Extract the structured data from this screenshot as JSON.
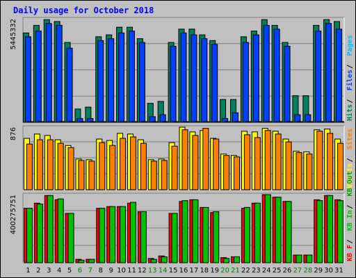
{
  "title": "Daily usage for October 2018",
  "colors": {
    "background": "#c0c0c0",
    "panel": "#c0c0c0",
    "title": "#0000ff",
    "hits": "#00805c",
    "files": "#0040ff",
    "pages": "#00c0ff",
    "visits": "#ffff00",
    "sites": "#ff8000",
    "kbin": "#00c000",
    "kbout": "#00a000",
    "kbf": "#ff0000",
    "weekday": "#000000",
    "weekend": "#008000"
  },
  "chart_data": [
    {
      "type": "bar",
      "name": "hits-files-pages",
      "max_label": "5445332",
      "legend": [
        {
          "label": "Hits",
          "color": "#00805c"
        },
        {
          "label": "Files",
          "color": "#0040ff"
        },
        {
          "label": "Pages",
          "color": "#00c0ff"
        }
      ],
      "categories": [
        "1",
        "2",
        "3",
        "4",
        "5",
        "6",
        "7",
        "8",
        "9",
        "10",
        "11",
        "12",
        "13",
        "14",
        "15",
        "16",
        "17",
        "18",
        "19",
        "20",
        "21",
        "22",
        "23",
        "24",
        "25",
        "26",
        "27",
        "28",
        "29",
        "30",
        "31"
      ],
      "series": [
        {
          "name": "Hits",
          "values": [
            4700000,
            5100000,
            5400000,
            5300000,
            4200000,
            700000,
            800000,
            4500000,
            4600000,
            5000000,
            5000000,
            4400000,
            1000000,
            1100000,
            4200000,
            4900000,
            4900000,
            4600000,
            4300000,
            1200000,
            1200000,
            4500000,
            4800000,
            5400000,
            5100000,
            4200000,
            1400000,
            1400000,
            5100000,
            5400000,
            5300000
          ],
          "color": "#00805c"
        },
        {
          "name": "Files",
          "values": [
            4500000,
            4800000,
            5200000,
            5100000,
            3900000,
            200000,
            200000,
            4300000,
            4400000,
            4700000,
            4800000,
            4200000,
            300000,
            400000,
            4000000,
            4700000,
            4600000,
            4400000,
            4100000,
            200000,
            500000,
            4200000,
            4600000,
            5100000,
            4900000,
            4000000,
            400000,
            400000,
            4800000,
            5200000,
            4900000
          ],
          "color": "#0040ff"
        },
        {
          "name": "Pages",
          "values": [
            30000,
            40000,
            40000,
            40000,
            30000,
            20000,
            20000,
            30000,
            30000,
            40000,
            40000,
            30000,
            20000,
            20000,
            30000,
            40000,
            40000,
            30000,
            30000,
            20000,
            20000,
            30000,
            40000,
            40000,
            40000,
            30000,
            20000,
            20000,
            40000,
            40000,
            40000
          ],
          "color": "#00c0ff"
        }
      ],
      "ylim": [
        0,
        5445332
      ]
    },
    {
      "type": "bar",
      "name": "visits-sites",
      "max_label": "876",
      "legend": [
        {
          "label": "Visits",
          "color": "#ffff00"
        },
        {
          "label": "Sites",
          "color": "#ff8000"
        }
      ],
      "categories": [
        "1",
        "2",
        "3",
        "4",
        "5",
        "6",
        "7",
        "8",
        "9",
        "10",
        "11",
        "12",
        "13",
        "14",
        "15",
        "16",
        "17",
        "18",
        "19",
        "20",
        "21",
        "22",
        "23",
        "24",
        "25",
        "26",
        "27",
        "28",
        "29",
        "30",
        "31"
      ],
      "series": [
        {
          "name": "Visits",
          "values": [
            720,
            780,
            760,
            700,
            620,
            430,
            420,
            710,
            690,
            790,
            780,
            700,
            420,
            430,
            660,
            876,
            810,
            830,
            720,
            500,
            480,
            820,
            810,
            860,
            820,
            710,
            540,
            530,
            840,
            850,
            710
          ],
          "color": "#ffff00"
        },
        {
          "name": "Sites",
          "values": [
            640,
            700,
            700,
            650,
            590,
            410,
            400,
            660,
            620,
            720,
            740,
            650,
            400,
            410,
            610,
            840,
            760,
            860,
            710,
            480,
            460,
            770,
            730,
            830,
            780,
            670,
            520,
            500,
            820,
            790,
            650
          ],
          "color": "#ff8000"
        }
      ],
      "ylim": [
        0,
        876
      ]
    },
    {
      "type": "bar",
      "name": "kb-in-out",
      "max_label": "400275751",
      "legend": [
        {
          "label": "KB F",
          "color": "#ff0000"
        },
        {
          "label": "KB In",
          "color": "#00c000"
        },
        {
          "label": "KB Out",
          "color": "#00a000"
        }
      ],
      "categories": [
        "1",
        "2",
        "3",
        "4",
        "5",
        "6",
        "7",
        "8",
        "9",
        "10",
        "11",
        "12",
        "13",
        "14",
        "15",
        "16",
        "17",
        "18",
        "19",
        "20",
        "21",
        "22",
        "23",
        "24",
        "25",
        "26",
        "27",
        "28",
        "29",
        "30",
        "31"
      ],
      "series": [
        {
          "name": "KB F",
          "values": [
            320000000,
            350000000,
            395000000,
            370000000,
            290000000,
            20000000,
            20000000,
            320000000,
            330000000,
            330000000,
            350000000,
            300000000,
            25000000,
            40000000,
            290000000,
            360000000,
            370000000,
            325000000,
            295000000,
            30000000,
            35000000,
            320000000,
            350000000,
            400275751,
            385000000,
            360000000,
            45000000,
            45000000,
            370000000,
            395000000,
            370000000
          ],
          "color": "#ff0000"
        },
        {
          "name": "KB In",
          "values": [
            320000000,
            345000000,
            395000000,
            375000000,
            290000000,
            15000000,
            20000000,
            320000000,
            330000000,
            330000000,
            355000000,
            300000000,
            20000000,
            35000000,
            290000000,
            365000000,
            370000000,
            325000000,
            300000000,
            25000000,
            35000000,
            325000000,
            350000000,
            400000000,
            385000000,
            360000000,
            45000000,
            45000000,
            365000000,
            395000000,
            365000000
          ],
          "color": "#00c000"
        }
      ],
      "ylim": [
        0,
        400275751
      ]
    }
  ],
  "weekend_days": [
    "6",
    "7",
    "13",
    "14",
    "20",
    "21",
    "27",
    "28"
  ]
}
